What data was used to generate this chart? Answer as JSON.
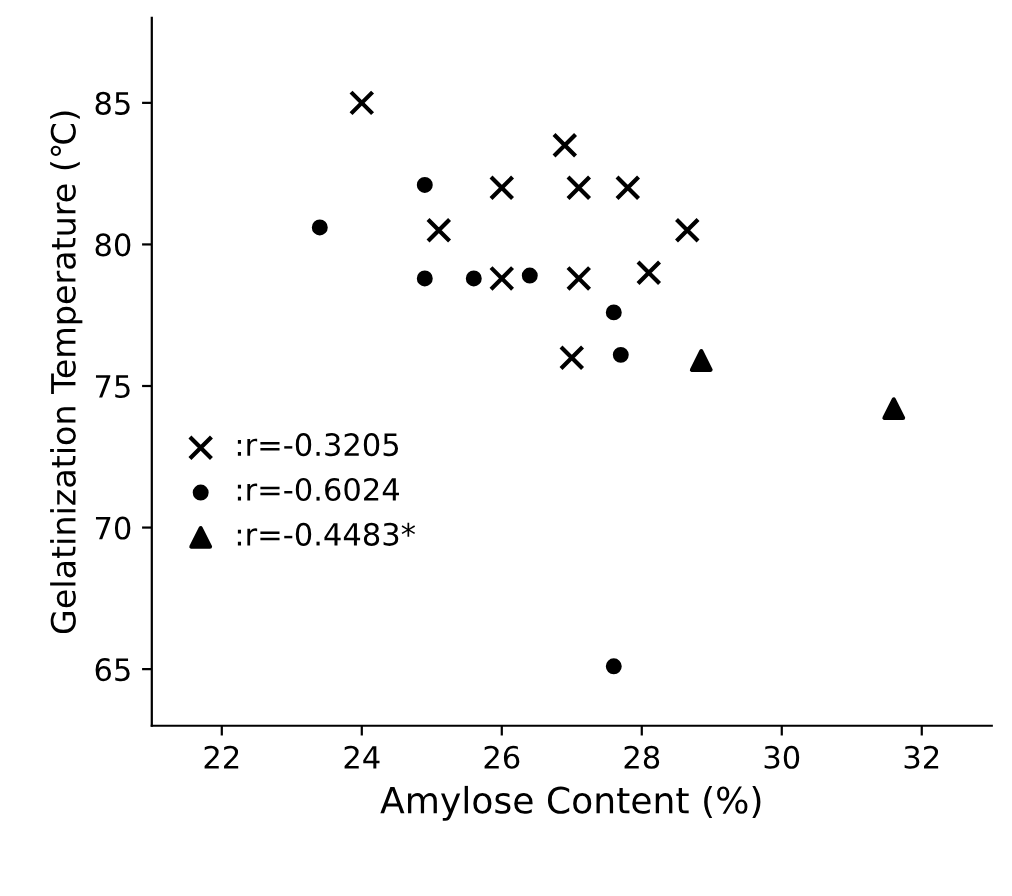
{
  "chart_data": {
    "type": "scatter",
    "xlabel": "Amylose Content (%)",
    "ylabel": "Gelatinization Temperature (℃)",
    "xlim": [
      21,
      33
    ],
    "ylim": [
      63,
      88
    ],
    "xticks": [
      22,
      24,
      26,
      28,
      30,
      32
    ],
    "yticks": [
      65,
      70,
      75,
      80,
      85
    ],
    "grid": false,
    "legend": "left",
    "series": [
      {
        "name": ":r=-0.3205",
        "color": "#000000",
        "marker": "cross",
        "x": [
          24.0,
          26.9,
          26.0,
          27.1,
          27.8,
          25.1,
          28.65,
          26.0,
          27.1,
          28.1,
          27.0
        ],
        "values": [
          85.0,
          83.5,
          82.0,
          82.0,
          82.0,
          80.5,
          80.5,
          78.8,
          78.8,
          79.0,
          76.0
        ]
      },
      {
        "name": ":r=-0.6024",
        "color": "#000000",
        "marker": "circle",
        "x": [
          23.4,
          24.9,
          24.9,
          25.6,
          26.4,
          27.6,
          27.7,
          27.6
        ],
        "values": [
          80.6,
          82.1,
          78.8,
          78.8,
          78.9,
          77.6,
          76.1,
          65.1
        ]
      },
      {
        "name": ":r=-0.4483*",
        "color": "#000000",
        "marker": "triangle",
        "x": [
          28.85,
          31.6
        ],
        "values": [
          75.9,
          74.2
        ]
      }
    ]
  }
}
